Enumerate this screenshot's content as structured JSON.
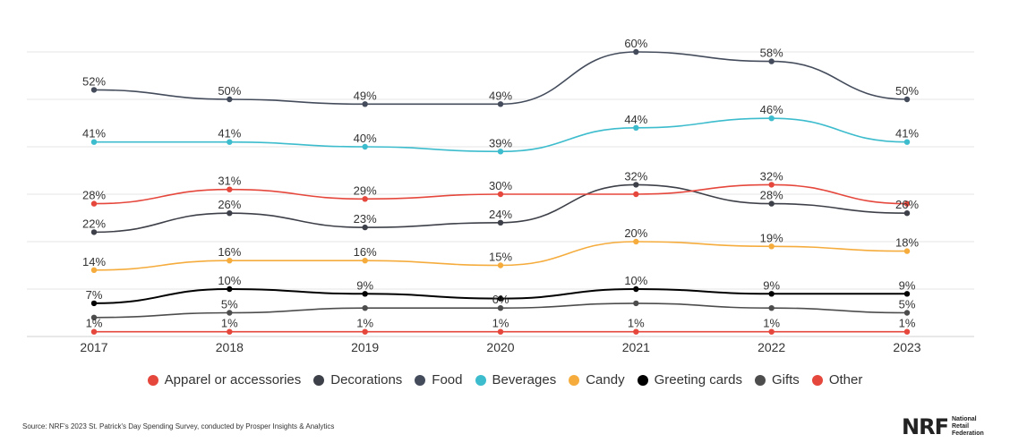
{
  "chart_data": {
    "type": "line",
    "x": [
      "2017",
      "2018",
      "2019",
      "2020",
      "2021",
      "2022",
      "2023"
    ],
    "ylim": [
      0,
      65
    ],
    "grid": true,
    "legend_position": "bottom",
    "series": [
      {
        "name": "Apparel or accessories",
        "color": "#e5473c",
        "values": [
          1,
          1,
          1,
          1,
          1,
          1,
          1
        ],
        "labels": [
          "1%",
          "1%",
          "1%",
          "1%",
          "1%",
          "1%",
          "1%"
        ]
      },
      {
        "name": "Decorations",
        "color": "#3d4048",
        "values": [
          22,
          26,
          23,
          24,
          32,
          28,
          26
        ],
        "labels": [
          "22%",
          "26%",
          "23%",
          "24%",
          "32%",
          "28%",
          "26%"
        ]
      },
      {
        "name": "Food",
        "color": "#444c5c",
        "values": [
          52,
          50,
          49,
          49,
          60,
          58,
          50
        ],
        "labels": [
          "52%",
          "50%",
          "49%",
          "49%",
          "60%",
          "58%",
          "50%"
        ]
      },
      {
        "name": "Beverages",
        "color": "#3cbccd",
        "values": [
          41,
          41,
          40,
          39,
          44,
          46,
          41
        ],
        "labels": [
          "41%",
          "41%",
          "40%",
          "39%",
          "44%",
          "46%",
          "41%"
        ]
      },
      {
        "name": "Candy",
        "color": "#f5ac3d",
        "values": [
          14,
          16,
          16,
          15,
          20,
          19,
          18
        ],
        "labels": [
          "14%",
          "16%",
          "16%",
          "15%",
          "20%",
          "19%",
          "18%"
        ]
      },
      {
        "name": "Greeting cards",
        "color": "#000000",
        "values": [
          7,
          10,
          9,
          8,
          10,
          9,
          9
        ],
        "labels": [
          "7%",
          "10%",
          "9%",
          "",
          "10%",
          "9%",
          "9%"
        ]
      },
      {
        "name": "Gifts",
        "color": "#4d4d4d",
        "values": [
          4,
          5,
          6,
          6,
          7,
          6,
          5
        ],
        "labels": [
          "",
          "5%",
          "",
          "6%",
          "",
          "",
          "5%"
        ]
      },
      {
        "name": "Other",
        "color": "#e5473c",
        "values": [
          28,
          31,
          29,
          30,
          30,
          32,
          28
        ],
        "labels": [
          "28%",
          "31%",
          "29%",
          "30%",
          "",
          "32%",
          ""
        ]
      }
    ]
  },
  "source": "Source: NRF's 2023 St. Patrick's Day Spending Survey, conducted by Prosper Insights & Analytics",
  "logo": {
    "mark": "NRF",
    "line1": "National",
    "line2": "Retail",
    "line3": "Federation"
  }
}
